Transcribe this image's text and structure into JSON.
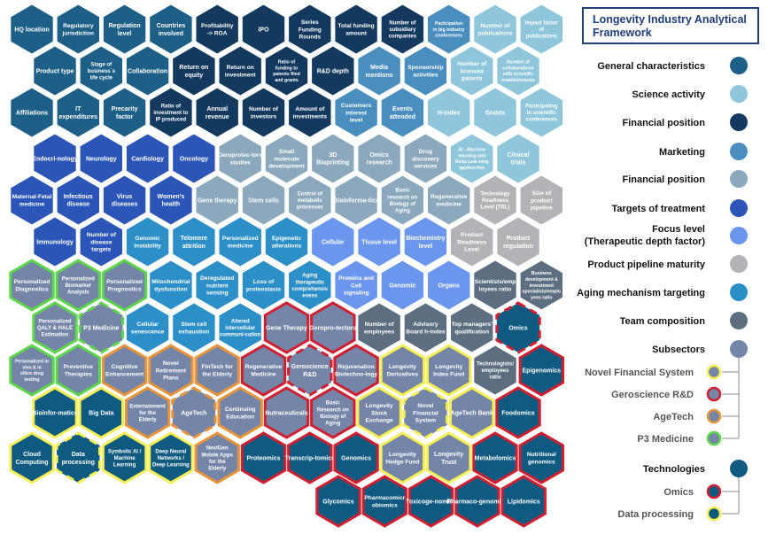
{
  "title": "Longevity Industry Analytical Framework",
  "colors": {
    "general": "#1d5f86",
    "science": "#8fc6dc",
    "financial_dark": "#133a5e",
    "marketing": "#4a8ec0",
    "financial": "#8ba8bd",
    "targets": "#2b55b6",
    "focus": "#6a96ee",
    "pipeline": "#b1b3b6",
    "aging": "#2c8fc8",
    "team": "#5c6e80",
    "subsectors": "#7485a8",
    "tech": "#0e5a80",
    "green_border": "#5cd64a",
    "red_border": "#d11f2f",
    "orange_border": "#e8953a",
    "yellow_border": "#f6ee53"
  },
  "legend": {
    "items": [
      {
        "label": "General characteristics",
        "fill": "general"
      },
      {
        "label": "Science activity",
        "fill": "science"
      },
      {
        "label": "Financial position",
        "fill": "financial_dark"
      },
      {
        "label": "Marketing",
        "fill": "marketing"
      },
      {
        "label": "Financial position",
        "fill": "financial"
      },
      {
        "label": "Targets of treatment",
        "fill": "targets"
      },
      {
        "label": "Focus level",
        "label2": "(Therapeutic depth factor)",
        "fill": "focus"
      },
      {
        "label": "Product pipeline maturity",
        "fill": "pipeline"
      },
      {
        "label": "Aging mechanism targeting",
        "fill": "aging"
      },
      {
        "label": "Team composition",
        "fill": "team"
      },
      {
        "label": "Subsectors",
        "fill": "subsectors"
      }
    ],
    "sub_items": [
      {
        "label": "Novel Financial System",
        "border": "yellow_border"
      },
      {
        "label": "Geroscience R&D",
        "border": "red_border"
      },
      {
        "label": "AgeTech",
        "border": "orange_border"
      },
      {
        "label": "P3 Medicine",
        "border": "green_border"
      }
    ],
    "tech_header": "Technologies",
    "tech_items": [
      {
        "label": "Omics",
        "border": "red_border"
      },
      {
        "label": "Data processing",
        "border": "yellow_border"
      }
    ]
  },
  "hexes": [
    {
      "label": "HQ location",
      "fill": "general"
    },
    {
      "label": "Regulatory jurisdiction",
      "fill": "general"
    },
    {
      "label": "Regulation level",
      "fill": "general"
    },
    {
      "label": "Countries involved",
      "fill": "general"
    },
    {
      "label": "Profitability -> ROA",
      "fill": "financial_dark"
    },
    {
      "label": "IPO",
      "fill": "financial_dark"
    },
    {
      "label": "Series Funding Rounds",
      "fill": "financial_dark"
    },
    {
      "label": "Total funding amount",
      "fill": "financial_dark"
    },
    {
      "label": "Number of subsidiary companies",
      "fill": "financial_dark"
    },
    {
      "label": "Participation in big industry conferences",
      "fill": "marketing"
    },
    {
      "label": "Number of publications",
      "fill": "science"
    },
    {
      "label": "Impact factor of publications",
      "fill": "science"
    },
    {
      "label": "Product type",
      "fill": "general"
    },
    {
      "label": "Stage of business`s life cycle",
      "fill": "general"
    },
    {
      "label": "Collaboration",
      "fill": "general"
    },
    {
      "label": "Return on equity",
      "fill": "financial_dark"
    },
    {
      "label": "Return on investment",
      "fill": "financial_dark"
    },
    {
      "label": "Ratio of funding to patents filed and grants",
      "fill": "financial_dark"
    },
    {
      "label": "R&D depth",
      "fill": "financial_dark"
    },
    {
      "label": "Media mentions",
      "fill": "marketing"
    },
    {
      "label": "Sponsorship activities",
      "fill": "marketing"
    },
    {
      "label": "Number of licensed patents",
      "fill": "science"
    },
    {
      "label": "Number of collaborations with scientific establishments",
      "fill": "science"
    },
    {
      "label": "Affiliations",
      "fill": "general"
    },
    {
      "label": "IT expenditures",
      "fill": "general"
    },
    {
      "label": "Precarity factor",
      "fill": "general"
    },
    {
      "label": "Ratio of investment to IP produced",
      "fill": "financial_dark"
    },
    {
      "label": "Annual revenue",
      "fill": "financial_dark"
    },
    {
      "label": "Number of investors",
      "fill": "financial_dark"
    },
    {
      "label": "Amount of investments",
      "fill": "financial_dark"
    },
    {
      "label": "Customers interest level",
      "fill": "marketing"
    },
    {
      "label": "Events attended",
      "fill": "marketing"
    },
    {
      "label": "H-index",
      "fill": "science"
    },
    {
      "label": "Grants",
      "fill": "science"
    },
    {
      "label": "Participating in scientific conferences",
      "fill": "science"
    },
    {
      "label": "Endocri-nology",
      "fill": "targets"
    },
    {
      "label": "Neurology",
      "fill": "targets"
    },
    {
      "label": "Cardiology",
      "fill": "targets"
    },
    {
      "label": "Oncology",
      "fill": "targets"
    },
    {
      "label": "Geroprotec-tors studies",
      "fill": "financial"
    },
    {
      "label": "Small molecule development",
      "fill": "financial"
    },
    {
      "label": "3D Bioprinting",
      "fill": "financial"
    },
    {
      "label": "Omics research",
      "fill": "financial"
    },
    {
      "label": "Drug discovery services",
      "fill": "financial"
    },
    {
      "label": "AI - Machine learning and Deep Lear-ning applica-tion",
      "fill": "science"
    },
    {
      "label": "Clinical trials",
      "fill": "science"
    },
    {
      "label": "Maternal-Fetal medicine",
      "fill": "targets"
    },
    {
      "label": "Infectious disease",
      "fill": "targets"
    },
    {
      "label": "Virus diseases",
      "fill": "targets"
    },
    {
      "label": "Women's health",
      "fill": "targets"
    },
    {
      "label": "Gene therapy",
      "fill": "financial"
    },
    {
      "label": "Stem cells",
      "fill": "financial"
    },
    {
      "label": "Control of metabolic processes",
      "fill": "financial"
    },
    {
      "label": "Bioinforma-tics",
      "fill": "financial"
    },
    {
      "label": "Basic research on Biology of Aging",
      "fill": "financial"
    },
    {
      "label": "Regenerative medicine",
      "fill": "financial"
    },
    {
      "label": "Technology Readiness Level (TRL)",
      "fill": "pipeline"
    },
    {
      "label": "Size of product pipeline",
      "fill": "pipeline"
    },
    {
      "label": "Immunology",
      "fill": "targets"
    },
    {
      "label": "Number of disease targets",
      "fill": "targets"
    },
    {
      "label": "Genomic instability",
      "fill": "aging"
    },
    {
      "label": "Telomere attrition",
      "fill": "aging"
    },
    {
      "label": "Personalized medicine",
      "fill": "aging"
    },
    {
      "label": "Epigenetic alterations",
      "fill": "aging"
    },
    {
      "label": "Cellular",
      "fill": "focus"
    },
    {
      "label": "Tissue level",
      "fill": "focus"
    },
    {
      "label": "Biochemistry level",
      "fill": "focus"
    },
    {
      "label": "Product Readiness Level",
      "fill": "pipeline"
    },
    {
      "label": "Product regulation",
      "fill": "pipeline"
    },
    {
      "label": "Personalized Diagnostics",
      "fill": "subsectors",
      "border": "green_border"
    },
    {
      "label": "Personalized Biomarker Analysis",
      "fill": "subsectors",
      "border": "green_border"
    },
    {
      "label": "Personalized Prognostics",
      "fill": "subsectors",
      "border": "green_border"
    },
    {
      "label": "Mitochondrial dysfunction",
      "fill": "aging"
    },
    {
      "label": "Deregulated nutrient sensing",
      "fill": "aging"
    },
    {
      "label": "Loss of proteostasis",
      "fill": "aging"
    },
    {
      "label": "Aging therapeutic comprehensiv eness",
      "fill": "aging"
    },
    {
      "label": "Proteins and Cell signaling",
      "fill": "focus"
    },
    {
      "label": "Genomic",
      "fill": "focus"
    },
    {
      "label": "Organs",
      "fill": "focus"
    },
    {
      "label": "Scientists/emp loyees ratio",
      "fill": "team"
    },
    {
      "label": "Business development & investment specialists/emplo yees ratio",
      "fill": "team"
    },
    {
      "label": "Personalized QALY & HALE Estimation",
      "fill": "subsectors",
      "border": "green_border"
    },
    {
      "label": "P3 Medicine",
      "fill": "subsectors",
      "border": "green_border",
      "dashed": true
    },
    {
      "label": "Cellular senescence",
      "fill": "aging"
    },
    {
      "label": "Stem cell exhaustion",
      "fill": "aging"
    },
    {
      "label": "Altered intercellular communi-cation",
      "fill": "aging"
    },
    {
      "label": "Gene Therapy",
      "fill": "subsectors",
      "border": "red_border"
    },
    {
      "label": "Geropro-tectors",
      "fill": "subsectors",
      "border": "red_border"
    },
    {
      "label": "Number of employees",
      "fill": "team"
    },
    {
      "label": "Advisory Board h-index",
      "fill": "team"
    },
    {
      "label": "Top managers' qualification",
      "fill": "team"
    },
    {
      "label": "Omics",
      "fill": "tech",
      "border": "red_border",
      "dashed": true
    },
    {
      "label": "Personalized in vivo & in silico drug testing",
      "fill": "subsectors",
      "border": "green_border"
    },
    {
      "label": "Preventive Therapies",
      "fill": "subsectors",
      "border": "green_border"
    },
    {
      "label": "Cognitive Enhancement",
      "fill": "subsectors",
      "border": "orange_border"
    },
    {
      "label": "Novel Retirement Plans",
      "fill": "subsectors",
      "border": "orange_border"
    },
    {
      "label": "FinTech for the Elderly",
      "fill": "subsectors",
      "border": "orange_border"
    },
    {
      "label": "Regenerative Medicine",
      "fill": "subsectors",
      "border": "red_border"
    },
    {
      "label": "Geroscience R&D",
      "fill": "subsectors",
      "border": "red_border",
      "dashed": true
    },
    {
      "label": "Rejuvenation Biotechno-logy",
      "fill": "subsectors",
      "border": "red_border"
    },
    {
      "label": "Longevity Derivatives",
      "fill": "subsectors",
      "border": "yellow_border"
    },
    {
      "label": "Longevity Index Fund",
      "fill": "subsectors",
      "border": "yellow_border"
    },
    {
      "label": "Technologists/ employees ratio",
      "fill": "team"
    },
    {
      "label": "Epigenomics",
      "fill": "tech",
      "border": "red_border"
    },
    {
      "label": "Bioinfor-matics",
      "fill": "tech",
      "border": "yellow_border"
    },
    {
      "label": "Big Data",
      "fill": "tech",
      "border": "yellow_border"
    },
    {
      "label": "Entertainment for the Elderly",
      "fill": "subsectors",
      "border": "orange_border"
    },
    {
      "label": "AgeTech",
      "fill": "subsectors",
      "border": "orange_border",
      "dashed": true
    },
    {
      "label": "Continuing Education",
      "fill": "subsectors",
      "border": "orange_border"
    },
    {
      "label": "Nutraceuticals",
      "fill": "subsectors",
      "border": "red_border"
    },
    {
      "label": "Basic Research on Biology of Aging",
      "fill": "subsectors",
      "border": "red_border"
    },
    {
      "label": "Longevity Stock Exchange",
      "fill": "subsectors",
      "border": "yellow_border"
    },
    {
      "label": "Novel Financial System",
      "fill": "subsectors",
      "border": "yellow_border",
      "dashed": true
    },
    {
      "label": "AgeTech Bank",
      "fill": "subsectors",
      "border": "yellow_border"
    },
    {
      "label": "Foodomics",
      "fill": "tech",
      "border": "red_border"
    },
    {
      "label": "Cloud Computing",
      "fill": "tech",
      "border": "yellow_border"
    },
    {
      "label": "Data processing",
      "fill": "tech",
      "border": "yellow_border",
      "dashed": true
    },
    {
      "label": "Symbolic AI / Machine Learning",
      "fill": "tech",
      "border": "yellow_border"
    },
    {
      "label": "Deep Neural Networks / Deep Learning",
      "fill": "tech",
      "border": "yellow_border"
    },
    {
      "label": "NextGen Mobile Apps for the Elderly",
      "fill": "subsectors",
      "border": "orange_border"
    },
    {
      "label": "Proteomics",
      "fill": "tech",
      "border": "red_border"
    },
    {
      "label": "Transcrip-tomics",
      "fill": "tech",
      "border": "red_border"
    },
    {
      "label": "Genomics",
      "fill": "tech",
      "border": "red_border"
    },
    {
      "label": "Longevity Hedge Fund",
      "fill": "subsectors",
      "border": "yellow_border"
    },
    {
      "label": "Longevity Trust",
      "fill": "subsectors",
      "border": "yellow_border"
    },
    {
      "label": "Metabolomics",
      "fill": "tech",
      "border": "red_border"
    },
    {
      "label": "Nutritional genomics",
      "fill": "tech",
      "border": "red_border"
    },
    {
      "label": "Glycomics",
      "fill": "tech",
      "border": "red_border"
    },
    {
      "label": "Pharmacomicr obiomics",
      "fill": "tech",
      "border": "red_border"
    },
    {
      "label": "Toxicoge-nomics",
      "fill": "tech",
      "border": "red_border"
    },
    {
      "label": "Pharmaco-genomics",
      "fill": "tech",
      "border": "red_border"
    },
    {
      "label": "Lipidomics",
      "fill": "tech",
      "border": "red_border"
    }
  ]
}
